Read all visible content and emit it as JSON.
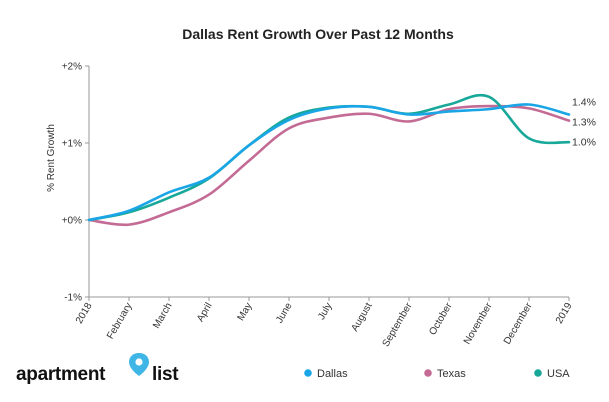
{
  "chart_data": {
    "type": "line",
    "title": "Dallas Rent Growth Over Past 12 Months",
    "xlabel": "",
    "ylabel": "% Rent Growth",
    "categories": [
      "2018",
      "February",
      "March",
      "April",
      "May",
      "June",
      "July",
      "August",
      "September",
      "October",
      "November",
      "December",
      "2019"
    ],
    "ylim": [
      -1,
      2
    ],
    "yticks": [
      -1,
      0,
      1,
      2
    ],
    "ytick_labels": [
      "-1%",
      "+0%",
      "+1%",
      "+2%"
    ],
    "series": [
      {
        "name": "Dallas",
        "color": "#1aa5e6",
        "values": [
          0.0,
          0.12,
          0.36,
          0.55,
          0.97,
          1.3,
          1.45,
          1.47,
          1.37,
          1.41,
          1.44,
          1.5,
          1.37
        ],
        "end_label": "1.4%"
      },
      {
        "name": "Texas",
        "color": "#c46b95",
        "values": [
          0.0,
          -0.06,
          0.1,
          0.33,
          0.77,
          1.19,
          1.33,
          1.38,
          1.28,
          1.44,
          1.48,
          1.45,
          1.29
        ],
        "end_label": "1.3%"
      },
      {
        "name": "USA",
        "color": "#17a899",
        "values": [
          0.0,
          0.1,
          0.29,
          0.54,
          0.97,
          1.33,
          1.46,
          1.47,
          1.38,
          1.5,
          1.6,
          1.06,
          1.01
        ],
        "end_label": "1.0%"
      }
    ],
    "grid": false,
    "legend_position": "bottom-right"
  },
  "brand": {
    "word1": "apartment",
    "word2": "list"
  }
}
